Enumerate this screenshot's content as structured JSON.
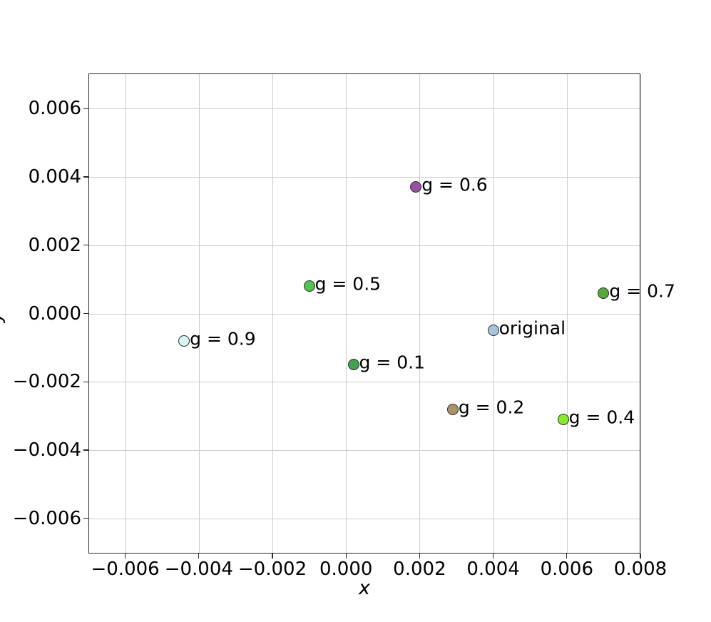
{
  "figure": {
    "background": "#ffffff",
    "grid_color": "#cccccc",
    "spine_color": "#2a2a2a",
    "marker_edge_color": "#2d2d2d",
    "text_color": "#000000"
  },
  "chart_data": {
    "type": "scatter",
    "title": "",
    "xlabel": "x",
    "ylabel": "y",
    "grid": true,
    "legend": "none (points annotated directly)",
    "xlim": [
      -0.007,
      0.008
    ],
    "ylim": [
      -0.00703,
      0.00703
    ],
    "xticks": [
      -0.006,
      -0.004,
      -0.002,
      0.0,
      0.002,
      0.004,
      0.006,
      0.008
    ],
    "xtick_labels": [
      "−0.006",
      "−0.004",
      "−0.002",
      "0.000",
      "0.002",
      "0.004",
      "0.006",
      "0.008"
    ],
    "yticks": [
      0.006,
      0.004,
      0.002,
      0.0,
      -0.002,
      -0.004,
      -0.006
    ],
    "ytick_labels": [
      "0.006",
      "0.004",
      "0.002",
      "0.000",
      "−0.002",
      "−0.004",
      "−0.006"
    ],
    "points": [
      {
        "label": "g = 0.1",
        "x": 0.0002,
        "y": -0.0015,
        "color": "#45a14f"
      },
      {
        "label": "g = 0.2",
        "x": 0.0029,
        "y": -0.0028,
        "color": "#ab9168"
      },
      {
        "label": "g = 0.4",
        "x": 0.0059,
        "y": -0.0031,
        "color": "#86ea2c"
      },
      {
        "label": "g = 0.5",
        "x": -0.001,
        "y": 0.0008,
        "color": "#52c452"
      },
      {
        "label": "g = 0.6",
        "x": 0.0019,
        "y": 0.0037,
        "color": "#99519d"
      },
      {
        "label": "g = 0.7",
        "x": 0.007,
        "y": 0.0006,
        "color": "#57a83e"
      },
      {
        "label": "g = 0.9",
        "x": -0.0044,
        "y": -0.0008,
        "color": "#d8f6f1"
      },
      {
        "label": "original",
        "x": 0.004,
        "y": -0.0005,
        "color": "#a9c3dd"
      }
    ]
  }
}
